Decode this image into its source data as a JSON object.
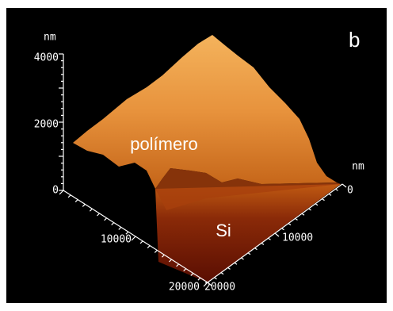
{
  "panel_label": "b",
  "regions": {
    "top": "polímero",
    "bottom": "Si"
  },
  "z_axis": {
    "unit": "nm",
    "ticks": [
      4000,
      2000,
      0
    ]
  },
  "x_axis": {
    "ticks": [
      10000,
      20000
    ]
  },
  "y_axis": {
    "unit": "nm",
    "ticks": [
      0,
      10000,
      20000
    ]
  }
}
